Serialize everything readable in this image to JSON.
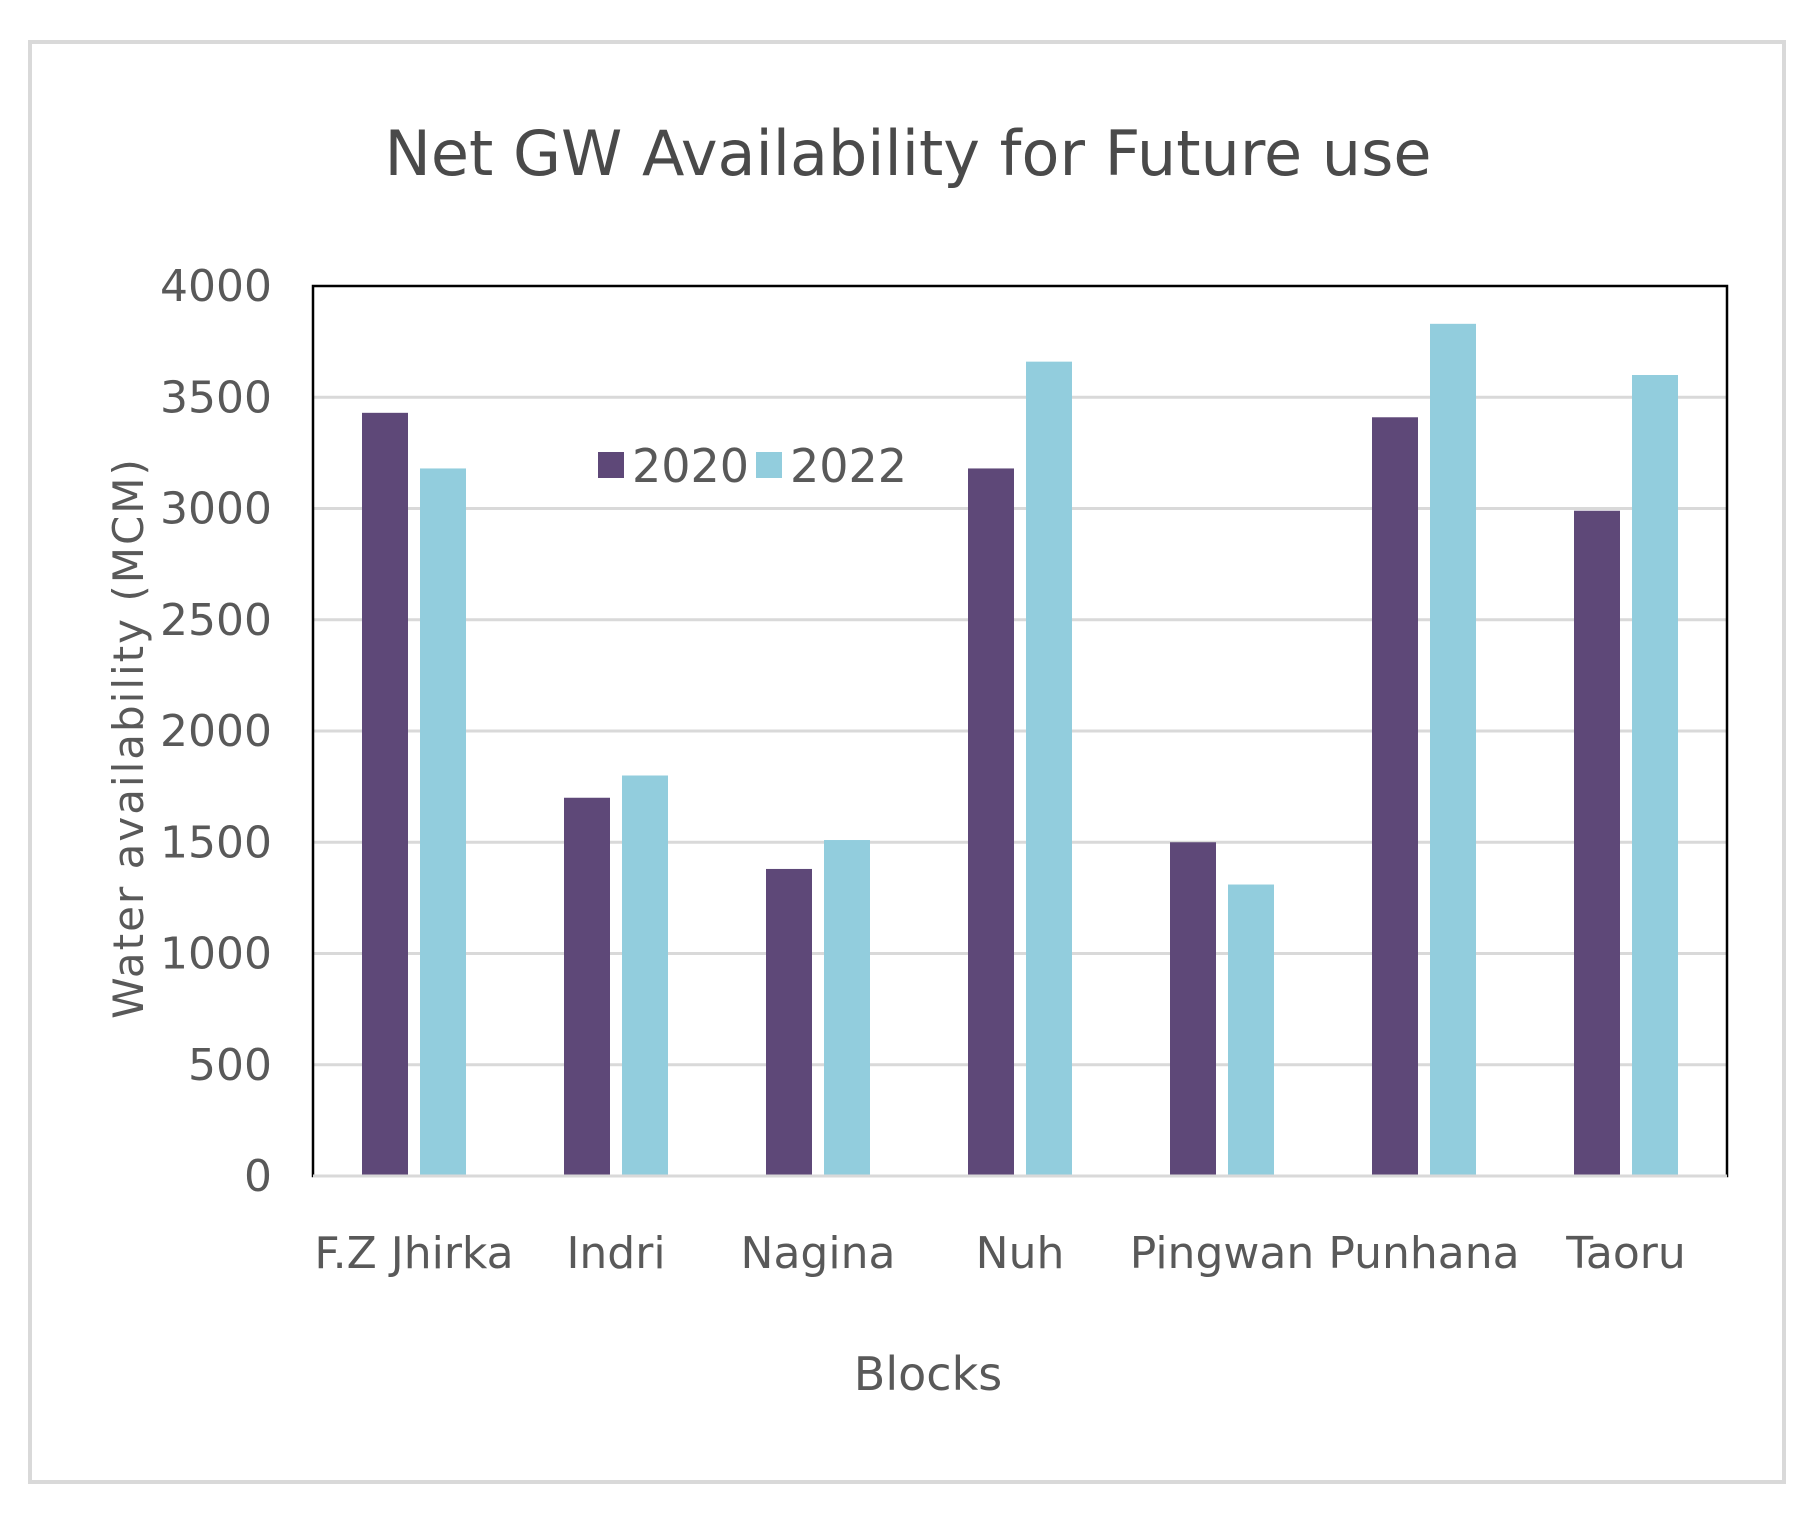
{
  "chart_data": {
    "type": "bar",
    "title": "Net GW Availability for Future use",
    "xlabel": "Blocks",
    "ylabel": "Water availability (MCM)",
    "ylim": [
      0,
      4000
    ],
    "yticks": [
      0,
      500,
      1000,
      1500,
      2000,
      2500,
      3000,
      3500,
      4000
    ],
    "grid": true,
    "legend_position": "top-left",
    "categories": [
      "F.Z Jhirka",
      "Indri",
      "Nagina",
      "Nuh",
      "Pingwan",
      "Punhana",
      "Taoru"
    ],
    "series": [
      {
        "name": "2020",
        "color": "#5e4878",
        "values": [
          3430,
          1700,
          1380,
          3180,
          1500,
          3410,
          2990
        ]
      },
      {
        "name": "2022",
        "color": "#92cddd",
        "values": [
          3180,
          1800,
          1510,
          3660,
          1310,
          3830,
          3600
        ]
      }
    ]
  }
}
